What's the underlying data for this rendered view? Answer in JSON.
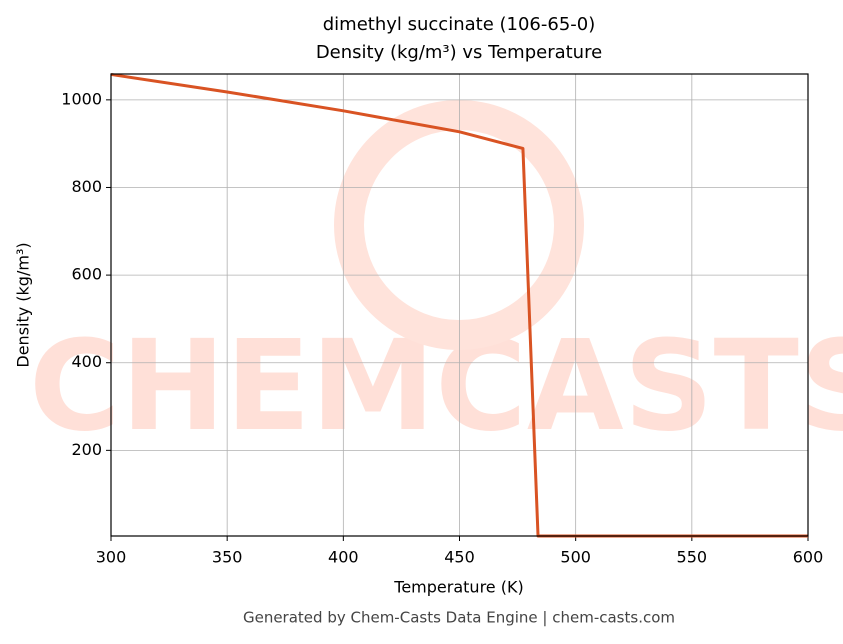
{
  "chart_data": {
    "type": "line",
    "title": "dimethyl succinate (106-65-0)",
    "subtitle": "Density (kg/m³) vs Temperature",
    "x_label": "Temperature (K)",
    "y_label": "Density (kg/m³)",
    "footer": "Generated by Chem-Casts Data Engine | chem-casts.com",
    "watermark": "CHEMCASTS",
    "x": [
      300,
      350,
      400,
      450,
      477.3,
      483.8,
      600
    ],
    "series": [
      {
        "name": "Density",
        "color": "#d95323",
        "values": [
          1058,
          1018,
          975,
          927,
          889,
          4.5,
          4.5
        ]
      }
    ],
    "xlim": [
      300,
      600
    ],
    "xticks": [
      300,
      350,
      400,
      450,
      500,
      550,
      600
    ],
    "ylim": [
      4.5,
      1059
    ],
    "yticks": [
      200,
      400,
      600,
      800,
      1000
    ],
    "grid": true
  }
}
